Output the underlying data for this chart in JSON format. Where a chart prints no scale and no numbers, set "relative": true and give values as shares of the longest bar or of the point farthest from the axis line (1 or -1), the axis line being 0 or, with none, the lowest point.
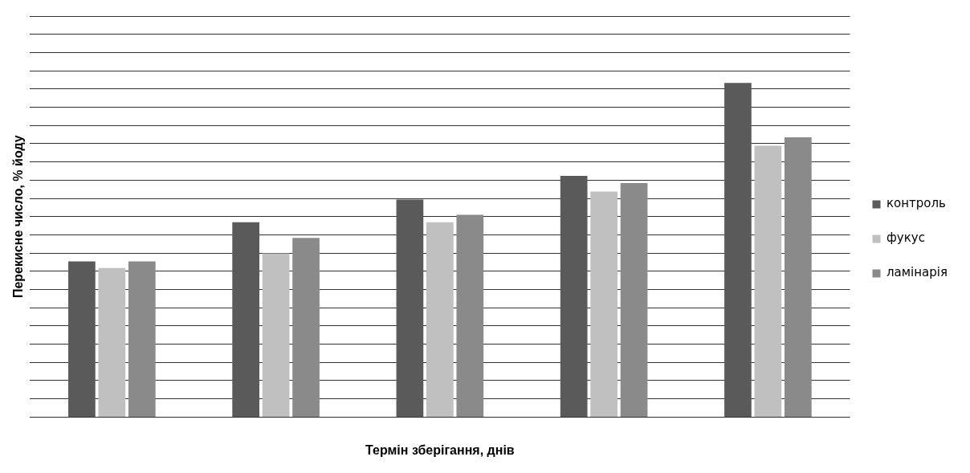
{
  "chart_data": {
    "type": "bar",
    "xlabel": "Термін зберігання, днів",
    "ylabel": "Перекисне число, % йоду",
    "categories": [
      null,
      null,
      null,
      null,
      null
    ],
    "relative": true,
    "grid": "y",
    "legend": "right",
    "series": [
      {
        "name": "контроль",
        "color": "#5a5a5a",
        "values": [
          0.466,
          0.583,
          0.651,
          0.722,
          1
        ]
      },
      {
        "name": "фукус",
        "color": "#c0c0c0",
        "values": [
          0.446,
          0.49,
          0.583,
          0.675,
          0.812
        ]
      },
      {
        "name": "ламінарія",
        "color": "#8a8a8a",
        "values": [
          0.466,
          0.536,
          0.605,
          0.7,
          0.837
        ]
      }
    ]
  }
}
